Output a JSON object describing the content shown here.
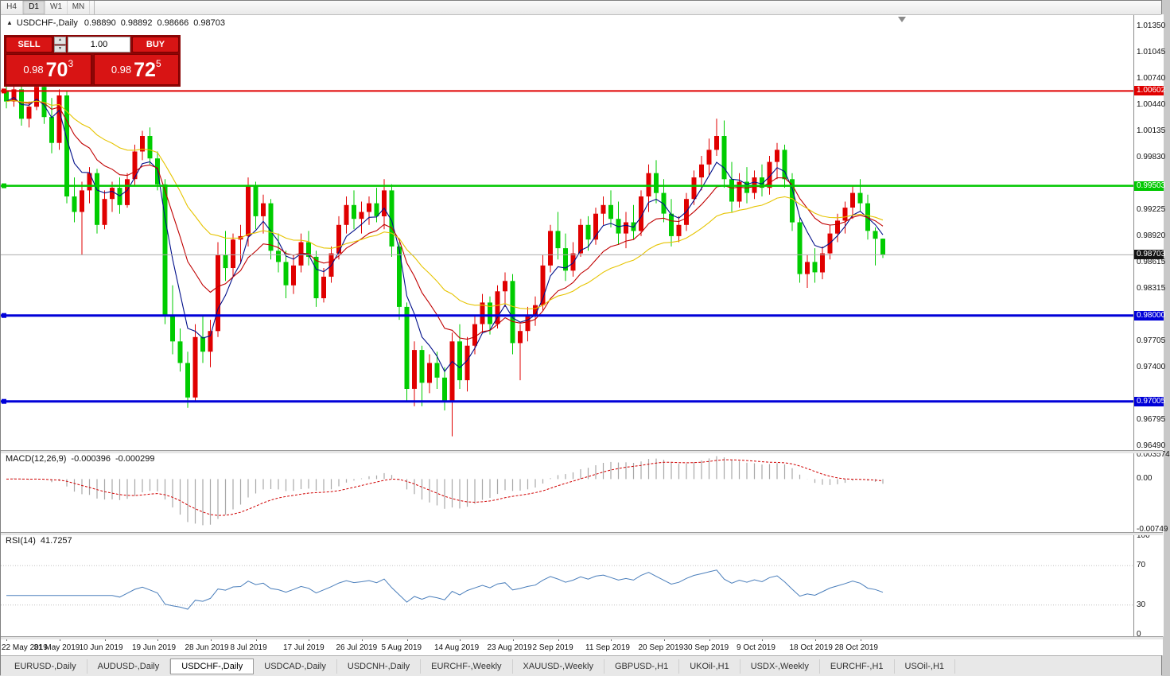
{
  "toolbar": {
    "timeframes": [
      "H4",
      "D1",
      "W1",
      "MN"
    ],
    "active": "D1"
  },
  "title": {
    "collapse_icon": "▲",
    "symbol": "USDCHF-,Daily",
    "open": "0.98890",
    "high": "0.98892",
    "low": "0.98666",
    "close": "0.98703"
  },
  "trade_panel": {
    "sell_label": "SELL",
    "buy_label": "BUY",
    "volume": "1.00",
    "sell_price": {
      "base": "0.98",
      "big": "70",
      "sup": "3"
    },
    "buy_price": {
      "base": "0.98",
      "big": "72",
      "sup": "5"
    },
    "button_color": "#d81414",
    "spinner_up_icon": "▲",
    "spinner_down_icon": "▼"
  },
  "chart_data": {
    "type": "candlestick",
    "symbol": "USDCHF",
    "timeframe": "Daily",
    "up_color": "#e00000",
    "down_color": "#00cc00",
    "y_range": [
      0.9644,
      1.0149
    ],
    "price_axis_ticks": [
      "1.01350",
      "1.01045",
      "1.00740",
      "1.00440",
      "1.00135",
      "0.99830",
      "0.99225",
      "0.98920",
      "0.98615",
      "0.98315",
      "0.97705",
      "0.97400",
      "0.96795",
      "0.96490"
    ],
    "hlines": [
      {
        "price": 1.00602,
        "label": "1.00602",
        "color": "#e00000",
        "width": 2
      },
      {
        "price": 0.99503,
        "label": "0.99503",
        "color": "#00c800",
        "width": 2.5
      },
      {
        "price": 0.98,
        "label": "0.98000",
        "color": "#0000d8",
        "width": 3
      },
      {
        "price": 0.97005,
        "label": "0.97005",
        "color": "#0000d8",
        "width": 3
      }
    ],
    "bid": {
      "price": 0.98703,
      "label": "0.98703",
      "label_bg": "#141414",
      "line_color": "#ababab"
    },
    "ma_lines": [
      {
        "period": 5,
        "color": "#000f8a"
      },
      {
        "period": 12,
        "color": "#c00000"
      },
      {
        "period": 26,
        "color": "#e6c400"
      }
    ],
    "candles": [
      [
        1.006,
        1.0075,
        1.004,
        1.0048
      ],
      [
        1.0048,
        1.0068,
        1.0042,
        1.0062
      ],
      [
        1.0062,
        1.0074,
        1.002,
        1.0028
      ],
      [
        1.0028,
        1.0048,
        1.0018,
        1.0042
      ],
      [
        1.0042,
        1.0074,
        1.0038,
        1.0065
      ],
      [
        1.0065,
        1.007,
        1.0022,
        1.003
      ],
      [
        1.003,
        1.0052,
        0.9988,
        1.0
      ],
      [
        1.0,
        1.0062,
        0.9992,
        1.0055
      ],
      [
        1.0055,
        1.006,
        0.993,
        0.9938
      ],
      [
        0.9938,
        0.996,
        0.9908,
        0.992
      ],
      [
        0.992,
        0.9955,
        0.987,
        0.9945
      ],
      [
        0.9945,
        0.9972,
        0.993,
        0.9965
      ],
      [
        0.9965,
        0.997,
        0.9895,
        0.9905
      ],
      [
        0.9905,
        0.9945,
        0.99,
        0.9935
      ],
      [
        0.9935,
        0.9955,
        0.992,
        0.9948
      ],
      [
        0.9948,
        0.996,
        0.9918,
        0.9928
      ],
      [
        0.9928,
        0.9965,
        0.9925,
        0.9958
      ],
      [
        0.9958,
        0.9998,
        0.995,
        0.999
      ],
      [
        0.999,
        1.0014,
        0.998,
        1.0008
      ],
      [
        1.0008,
        1.0018,
        0.9975,
        0.9982
      ],
      [
        0.9982,
        0.999,
        0.9945,
        0.9952
      ],
      [
        0.9952,
        0.9958,
        0.979,
        0.98
      ],
      [
        0.98,
        0.9835,
        0.9755,
        0.977
      ],
      [
        0.977,
        0.9785,
        0.9735,
        0.9745
      ],
      [
        0.9745,
        0.9758,
        0.9693,
        0.9705
      ],
      [
        0.9705,
        0.979,
        0.97,
        0.9775
      ],
      [
        0.9775,
        0.98,
        0.9745,
        0.9758
      ],
      [
        0.9758,
        0.9795,
        0.974,
        0.9782
      ],
      [
        0.9782,
        0.9885,
        0.9775,
        0.987
      ],
      [
        0.987,
        0.9898,
        0.984,
        0.9855
      ],
      [
        0.9855,
        0.9895,
        0.9845,
        0.9888
      ],
      [
        0.9888,
        0.9905,
        0.986,
        0.9892
      ],
      [
        0.9892,
        0.996,
        0.988,
        0.995
      ],
      [
        0.995,
        0.9955,
        0.99,
        0.9915
      ],
      [
        0.9915,
        0.994,
        0.9895,
        0.993
      ],
      [
        0.993,
        0.9935,
        0.9865,
        0.9875
      ],
      [
        0.9875,
        0.9895,
        0.985,
        0.9862
      ],
      [
        0.9862,
        0.9875,
        0.982,
        0.9835
      ],
      [
        0.9835,
        0.987,
        0.9825,
        0.9858
      ],
      [
        0.9858,
        0.9895,
        0.985,
        0.9885
      ],
      [
        0.9885,
        0.9898,
        0.9858,
        0.9868
      ],
      [
        0.9868,
        0.9875,
        0.981,
        0.982
      ],
      [
        0.982,
        0.9855,
        0.9815,
        0.9845
      ],
      [
        0.9845,
        0.988,
        0.9838,
        0.9872
      ],
      [
        0.9872,
        0.9915,
        0.9865,
        0.9905
      ],
      [
        0.9905,
        0.9938,
        0.9895,
        0.9928
      ],
      [
        0.9928,
        0.9945,
        0.99,
        0.9912
      ],
      [
        0.9912,
        0.9932,
        0.9895,
        0.992
      ],
      [
        0.992,
        0.9938,
        0.9905,
        0.993
      ],
      [
        0.993,
        0.9948,
        0.9908,
        0.9915
      ],
      [
        0.9915,
        0.9958,
        0.99,
        0.9945
      ],
      [
        0.9945,
        0.9952,
        0.9868,
        0.988
      ],
      [
        0.988,
        0.9885,
        0.9795,
        0.981
      ],
      [
        0.981,
        0.9815,
        0.97,
        0.9715
      ],
      [
        0.9715,
        0.977,
        0.9695,
        0.976
      ],
      [
        0.976,
        0.9765,
        0.9695,
        0.9722
      ],
      [
        0.9722,
        0.9755,
        0.971,
        0.9745
      ],
      [
        0.9745,
        0.9758,
        0.9715,
        0.9728
      ],
      [
        0.9728,
        0.974,
        0.969,
        0.97
      ],
      [
        0.97,
        0.978,
        0.966,
        0.977
      ],
      [
        0.977,
        0.979,
        0.9715,
        0.9725
      ],
      [
        0.9725,
        0.9775,
        0.9712,
        0.9765
      ],
      [
        0.9765,
        0.98,
        0.9755,
        0.979
      ],
      [
        0.979,
        0.9825,
        0.978,
        0.9815
      ],
      [
        0.9815,
        0.9822,
        0.9778,
        0.979
      ],
      [
        0.979,
        0.9835,
        0.9785,
        0.9828
      ],
      [
        0.9828,
        0.985,
        0.981,
        0.984
      ],
      [
        0.984,
        0.9848,
        0.9755,
        0.9768
      ],
      [
        0.9768,
        0.979,
        0.9725,
        0.9782
      ],
      [
        0.9782,
        0.981,
        0.977,
        0.98
      ],
      [
        0.98,
        0.9822,
        0.9788,
        0.9812
      ],
      [
        0.9812,
        0.987,
        0.9805,
        0.9858
      ],
      [
        0.9858,
        0.9905,
        0.985,
        0.9898
      ],
      [
        0.9898,
        0.992,
        0.9865,
        0.9878
      ],
      [
        0.9878,
        0.9895,
        0.984,
        0.9852
      ],
      [
        0.9852,
        0.9885,
        0.9845,
        0.9872
      ],
      [
        0.9872,
        0.9912,
        0.9868,
        0.9905
      ],
      [
        0.9905,
        0.9915,
        0.9875,
        0.9888
      ],
      [
        0.9888,
        0.9925,
        0.9882,
        0.9918
      ],
      [
        0.9918,
        0.9938,
        0.9905,
        0.9928
      ],
      [
        0.9928,
        0.9945,
        0.9902,
        0.9912
      ],
      [
        0.9912,
        0.9932,
        0.9882,
        0.9895
      ],
      [
        0.9895,
        0.992,
        0.9878,
        0.9908
      ],
      [
        0.9908,
        0.9928,
        0.9888,
        0.9898
      ],
      [
        0.9898,
        0.9945,
        0.9892,
        0.9938
      ],
      [
        0.9938,
        0.9975,
        0.992,
        0.9965
      ],
      [
        0.9965,
        0.998,
        0.993,
        0.9942
      ],
      [
        0.9942,
        0.9958,
        0.9908,
        0.9918
      ],
      [
        0.9918,
        0.9935,
        0.988,
        0.9892
      ],
      [
        0.9892,
        0.9915,
        0.9885,
        0.9905
      ],
      [
        0.9905,
        0.9942,
        0.9898,
        0.9935
      ],
      [
        0.9935,
        0.9968,
        0.9928,
        0.996
      ],
      [
        0.996,
        0.9985,
        0.9945,
        0.9975
      ],
      [
        0.9975,
        1.0005,
        0.9962,
        0.9992
      ],
      [
        0.9992,
        1.0028,
        0.9985,
        1.0008
      ],
      [
        1.0008,
        1.0026,
        0.9948,
        0.9958
      ],
      [
        0.9958,
        0.9978,
        0.992,
        0.9932
      ],
      [
        0.9932,
        0.9965,
        0.9925,
        0.9955
      ],
      [
        0.9955,
        0.9972,
        0.993,
        0.9942
      ],
      [
        0.9942,
        0.9968,
        0.9935,
        0.996
      ],
      [
        0.996,
        0.9975,
        0.9938,
        0.9948
      ],
      [
        0.9948,
        0.9985,
        0.994,
        0.9978
      ],
      [
        0.9978,
        1.0,
        0.9958,
        0.9992
      ],
      [
        0.9992,
        0.9998,
        0.9948,
        0.9958
      ],
      [
        0.9958,
        0.9965,
        0.9898,
        0.9908
      ],
      [
        0.9908,
        0.9915,
        0.9838,
        0.9848
      ],
      [
        0.9848,
        0.987,
        0.9832,
        0.9862
      ],
      [
        0.9862,
        0.9878,
        0.9838,
        0.985
      ],
      [
        0.985,
        0.988,
        0.9842,
        0.9872
      ],
      [
        0.9872,
        0.9905,
        0.9865,
        0.9895
      ],
      [
        0.9895,
        0.9918,
        0.9885,
        0.991
      ],
      [
        0.991,
        0.9932,
        0.9895,
        0.9925
      ],
      [
        0.9925,
        0.995,
        0.9912,
        0.9942
      ],
      [
        0.9942,
        0.9958,
        0.992,
        0.993
      ],
      [
        0.993,
        0.994,
        0.9888,
        0.9898
      ],
      [
        0.9898,
        0.9902,
        0.9858,
        0.9889
      ],
      [
        0.9889,
        0.98892,
        0.98666,
        0.98703
      ]
    ],
    "time_labels": [
      {
        "text": "22 May 2019",
        "i": 0
      },
      {
        "text": "31 May 2019",
        "i": 7
      },
      {
        "text": "10 Jun 2019",
        "i": 13
      },
      {
        "text": "19 Jun 2019",
        "i": 20
      },
      {
        "text": "28 Jun 2019",
        "i": 27
      },
      {
        "text": "8 Jul 2019",
        "i": 33
      },
      {
        "text": "17 Jul 2019",
        "i": 40
      },
      {
        "text": "26 Jul 2019",
        "i": 47
      },
      {
        "text": "5 Aug 2019",
        "i": 53
      },
      {
        "text": "14 Aug 2019",
        "i": 60
      },
      {
        "text": "23 Aug 2019",
        "i": 67
      },
      {
        "text": "2 Sep 2019",
        "i": 73
      },
      {
        "text": "11 Sep 2019",
        "i": 80
      },
      {
        "text": "20 Sep 2019",
        "i": 87
      },
      {
        "text": "30 Sep 2019",
        "i": 93
      },
      {
        "text": "9 Oct 2019",
        "i": 100
      },
      {
        "text": "18 Oct 2019",
        "i": 107
      },
      {
        "text": "28 Oct 2019",
        "i": 113
      }
    ]
  },
  "macd": {
    "name": "MACD(12,26,9)",
    "value_main": "-0.000396",
    "value_signal": "-0.000299",
    "fast": 12,
    "slow": 26,
    "signal": 9,
    "axis_labels": [
      "0.003574",
      "0.00",
      "-0.00749"
    ],
    "range": [
      -0.00749,
      0.003574
    ],
    "hist_color": "#a8a8a8",
    "signal_color": "#d00000"
  },
  "rsi": {
    "name": "RSI(14)",
    "value": "41.7257",
    "period": 14,
    "axis_labels": [
      "100",
      "70",
      "30",
      "0"
    ],
    "levels": [
      70,
      30
    ],
    "color": "#4a7ebb",
    "level_color": "#c0c0c0"
  },
  "window_tabs": {
    "active_index": 2,
    "items": [
      "EURUSD-,Daily",
      "AUDUSD-,Daily",
      "USDCHF-,Daily",
      "USDCAD-,Daily",
      "USDCNH-,Daily",
      "EURCHF-,Weekly",
      "XAUUSD-,Weekly",
      "GBPUSD-,H1",
      "UKOil-,H1",
      "USDX-,Weekly",
      "EURCHF-,H1",
      "USOil-,H1"
    ]
  }
}
